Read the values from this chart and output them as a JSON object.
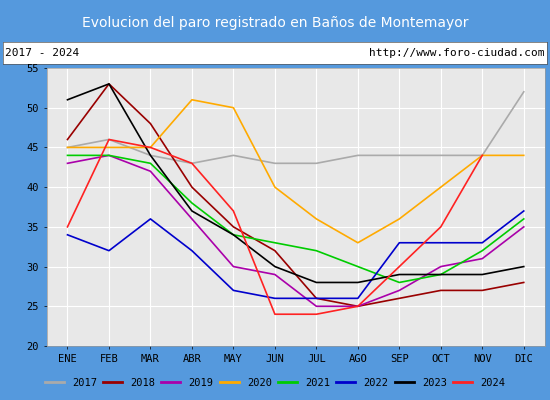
{
  "title": "Evolucion del paro registrado en Baños de Montemayor",
  "subtitle_left": "2017 - 2024",
  "subtitle_right": "http://www.foro-ciudad.com",
  "months": [
    "ENE",
    "FEB",
    "MAR",
    "ABR",
    "MAY",
    "JUN",
    "JUL",
    "AGO",
    "SEP",
    "OCT",
    "NOV",
    "DIC"
  ],
  "ylim": [
    20,
    55
  ],
  "yticks": [
    20,
    25,
    30,
    35,
    40,
    45,
    50,
    55
  ],
  "series": {
    "2017": {
      "color": "#aaaaaa",
      "values": [
        45,
        46,
        44,
        43,
        44,
        43,
        43,
        44,
        44,
        44,
        44,
        52
      ]
    },
    "2018": {
      "color": "#990000",
      "values": [
        46,
        53,
        48,
        40,
        35,
        32,
        26,
        25,
        26,
        27,
        27,
        28
      ]
    },
    "2019": {
      "color": "#aa00aa",
      "values": [
        43,
        44,
        42,
        36,
        30,
        29,
        25,
        25,
        27,
        30,
        31,
        35
      ]
    },
    "2020": {
      "color": "#ffaa00",
      "values": [
        45,
        45,
        45,
        51,
        50,
        40,
        36,
        33,
        36,
        40,
        44,
        44
      ]
    },
    "2021": {
      "color": "#00cc00",
      "values": [
        44,
        44,
        43,
        38,
        34,
        33,
        32,
        30,
        28,
        29,
        32,
        36
      ]
    },
    "2022": {
      "color": "#0000cc",
      "values": [
        34,
        32,
        36,
        32,
        27,
        26,
        26,
        26,
        33,
        33,
        33,
        37
      ]
    },
    "2023": {
      "color": "#000000",
      "values": [
        51,
        53,
        44,
        37,
        34,
        30,
        28,
        28,
        29,
        29,
        29,
        30
      ]
    },
    "2024": {
      "color": "#ff2222",
      "values": [
        35,
        46,
        45,
        43,
        37,
        24,
        24,
        25,
        30,
        35,
        44,
        null
      ]
    }
  },
  "title_bgcolor": "#4c72b8",
  "title_color": "white",
  "subtitle_bgcolor": "white",
  "subtitle_color": "black",
  "plot_bgcolor": "#e8e8e8",
  "grid_color": "white",
  "border_color": "#5599dd"
}
